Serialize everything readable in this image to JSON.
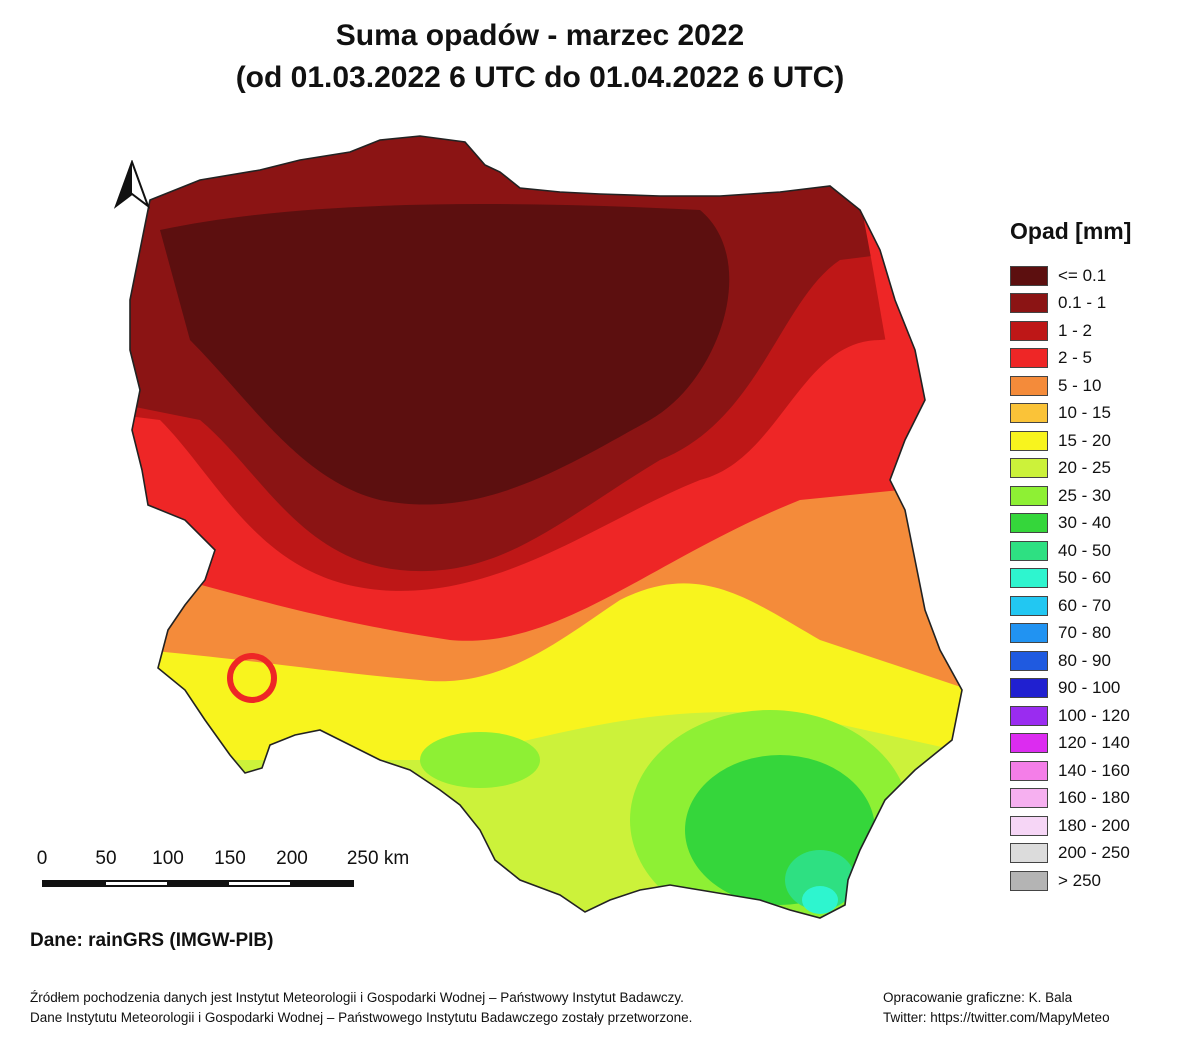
{
  "title": {
    "line1": "Suma opadów - marzec 2022",
    "line2": "(od 01.03.2022 6 UTC do 01.04.2022 6 UTC)"
  },
  "legend": {
    "title": "Opad [mm]",
    "items": [
      {
        "label": "<= 0.1",
        "color": "#5c0f0f"
      },
      {
        "label": "0.1 - 1",
        "color": "#8b1414"
      },
      {
        "label": "1 - 2",
        "color": "#be1717"
      },
      {
        "label": "2 - 5",
        "color": "#ee2626"
      },
      {
        "label": "5 - 10",
        "color": "#f48b3a"
      },
      {
        "label": "10 - 15",
        "color": "#fac338"
      },
      {
        "label": "15 - 20",
        "color": "#f8f41e"
      },
      {
        "label": "20 - 25",
        "color": "#ccf23a"
      },
      {
        "label": "25 - 30",
        "color": "#8ef034"
      },
      {
        "label": "30 - 40",
        "color": "#35d63b"
      },
      {
        "label": "40 - 50",
        "color": "#2ee082"
      },
      {
        "label": "50 - 60",
        "color": "#2ef5cf"
      },
      {
        "label": "60 - 70",
        "color": "#22c7f2"
      },
      {
        "label": "70 - 80",
        "color": "#2193f2"
      },
      {
        "label": "80 - 90",
        "color": "#1f5ae0"
      },
      {
        "label": "90 - 100",
        "color": "#2020d0"
      },
      {
        "label": "100 - 120",
        "color": "#9a2cf0"
      },
      {
        "label": "120 - 140",
        "color": "#dc2cf0"
      },
      {
        "label": "140 - 160",
        "color": "#f47ee8"
      },
      {
        "label": "160 - 180",
        "color": "#f6b0f0"
      },
      {
        "label": "180 - 200",
        "color": "#f6d6f6"
      },
      {
        "label": "200 - 250",
        "color": "#dcdcdc"
      },
      {
        "label": "> 250",
        "color": "#b4b4b4"
      }
    ]
  },
  "scale_bar": {
    "ticks": [
      "0",
      "50",
      "100",
      "150",
      "200",
      "250 km"
    ]
  },
  "source": "Dane: rainGRS (IMGW-PIB)",
  "notes": {
    "line1": "Źródłem pochodzenia danych jest Instytut Meteorologii i Gospodarki Wodnej – Państwowy Instytut Badawczy.",
    "line2": "Dane Instytutu Meteorologii i Gospodarki Wodnej – Państwowego Instytutu Badawczego zostały przetworzone."
  },
  "credits": {
    "line1": "Opracowanie graficzne: K. Bala",
    "line2": "Twitter: https://twitter.com/MapyMeteo"
  },
  "icons": {
    "north_arrow": "north-arrow-icon"
  }
}
